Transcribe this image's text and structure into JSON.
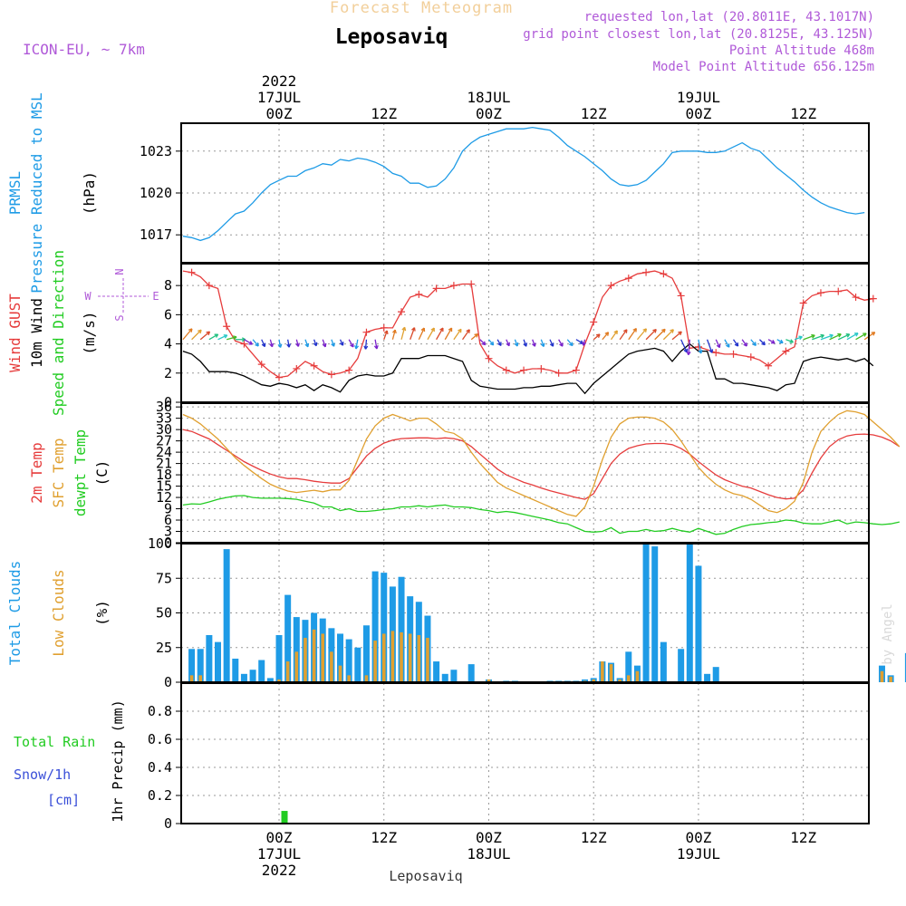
{
  "header": {
    "title": "Leposaviq",
    "subtitle": "Forecast Meteogram",
    "model": "ICON-EU, ~ 7km",
    "requested": "requested lon,lat (20.8011E, 43.1017N)",
    "grid": "grid point closest lon,lat (20.8125E, 43.125N)",
    "point_alt": "Point Altitude 468m",
    "model_alt": "Model Point Altitude 656.125m",
    "footer": "Leposaviq",
    "credit": "by Angel"
  },
  "colors": {
    "pressure": "#1e9be6",
    "gust": "#e63c3c",
    "wind": "#000000",
    "sfc": "#e0a030",
    "dewpt": "#22cc22",
    "total_clouds": "#1e9be6",
    "low_clouds": "#e0a030",
    "rain": "#22cc22",
    "snow": "#3a4fd8",
    "purple": "#b05ad8"
  },
  "time_axis": {
    "top_labels": [
      {
        "h": 0,
        "lines": [
          "2022",
          "17JUL",
          "00Z"
        ]
      },
      {
        "h": 12,
        "lines": [
          "12Z"
        ]
      },
      {
        "h": 24,
        "lines": [
          "18JUL",
          "00Z"
        ]
      },
      {
        "h": 36,
        "lines": [
          "12Z"
        ]
      },
      {
        "h": 48,
        "lines": [
          "19JUL",
          "00Z"
        ]
      },
      {
        "h": 60,
        "lines": [
          "12Z"
        ]
      }
    ],
    "bottom_labels": [
      {
        "h": 0,
        "lines": [
          "00Z",
          "17JUL",
          "2022"
        ]
      },
      {
        "h": 12,
        "lines": [
          "12Z"
        ]
      },
      {
        "h": 24,
        "lines": [
          "00Z",
          "18JUL"
        ]
      },
      {
        "h": 36,
        "lines": [
          "12Z"
        ]
      },
      {
        "h": 48,
        "lines": [
          "00Z",
          "19JUL"
        ]
      },
      {
        "h": 60,
        "lines": [
          "12Z"
        ]
      }
    ]
  },
  "panel_labels": {
    "pressure": [
      {
        "text": "PRMSL",
        "color": "#1e9be6"
      },
      {
        "text": "Pressure Reduced to MSL",
        "color": "#1e9be6"
      },
      {
        "text": "(hPa)",
        "color": "#000000"
      }
    ],
    "wind": [
      {
        "text": "Wind GUST",
        "color": "#e63c3c"
      },
      {
        "text": "10m Wind",
        "color": "#000000"
      },
      {
        "text": "Speed and Direction",
        "color": "#22cc22"
      },
      {
        "text": "(m/s)",
        "color": "#000000"
      }
    ],
    "compass": {
      "n": "N",
      "s": "S",
      "w": "W",
      "e": "E"
    },
    "temp": [
      {
        "text": "2m Temp",
        "color": "#e63c3c"
      },
      {
        "text": "SFC Temp",
        "color": "#e0a030"
      },
      {
        "text": "dewpt Temp",
        "color": "#22cc22"
      },
      {
        "text": "(C)",
        "color": "#000000"
      }
    ],
    "clouds": [
      {
        "text": "Total Clouds",
        "color": "#1e9be6"
      },
      {
        "text": "Low Clouds",
        "color": "#e0a030"
      },
      {
        "text": "(%)",
        "color": "#000000"
      }
    ],
    "precip_axis": "1hr Precip (mm)",
    "legend_rain": "Total  Rain",
    "legend_snow": "Snow/1h",
    "legend_cm": "[cm]"
  },
  "chart_data": [
    {
      "type": "line",
      "name": "pressure",
      "x_start": -11,
      "x_step": 1,
      "ylim": [
        1015,
        1025
      ],
      "yticks": [
        1017,
        1020,
        1023
      ],
      "series": [
        {
          "name": "PRMSL",
          "values": [
            1016.9,
            1016.8,
            1016.6,
            1016.8,
            1017.3,
            1017.9,
            1018.5,
            1018.7,
            1019.3,
            1020.0,
            1020.6,
            1020.9,
            1021.2,
            1021.2,
            1021.6,
            1021.8,
            1022.1,
            1022.0,
            1022.4,
            1022.3,
            1022.5,
            1022.4,
            1022.2,
            1021.9,
            1021.4,
            1021.2,
            1020.7,
            1020.7,
            1020.4,
            1020.5,
            1021.0,
            1021.8,
            1023.0,
            1023.6,
            1024.0,
            1024.2,
            1024.4,
            1024.6,
            1024.6,
            1024.6,
            1024.7,
            1024.6,
            1024.5,
            1024.0,
            1023.4,
            1023.0,
            1022.6,
            1022.1,
            1021.6,
            1021.0,
            1020.6,
            1020.5,
            1020.6,
            1020.9,
            1021.5,
            1022.1,
            1022.9,
            1023.0,
            1023.0,
            1023.0,
            1022.9,
            1022.9,
            1023.0,
            1023.3,
            1023.6,
            1023.2,
            1023.0,
            1022.4,
            1021.8,
            1021.3,
            1020.8,
            1020.2,
            1019.7,
            1019.3,
            1019.0,
            1018.8,
            1018.6,
            1018.5,
            1018.6
          ]
        }
      ]
    },
    {
      "type": "line",
      "name": "wind",
      "x_start": -11,
      "x_step": 1,
      "ylim": [
        0,
        9.5
      ],
      "yticks": [
        0,
        2,
        4,
        6,
        8
      ],
      "series": [
        {
          "name": "Wind GUST",
          "values": [
            9.0,
            8.9,
            8.6,
            8.0,
            7.8,
            5.2,
            4.2,
            4.0,
            3.3,
            2.6,
            2.1,
            1.7,
            1.8,
            2.3,
            2.8,
            2.5,
            2.1,
            1.9,
            2.0,
            2.2,
            3.0,
            4.8,
            5.0,
            5.1,
            5.1,
            6.2,
            7.2,
            7.4,
            7.2,
            7.8,
            7.8,
            8.0,
            8.1,
            8.1,
            4.0,
            3.0,
            2.5,
            2.2,
            2.0,
            2.2,
            2.3,
            2.3,
            2.2,
            2.0,
            2.0,
            2.2,
            4.0,
            5.5,
            7.2,
            8.0,
            8.3,
            8.5,
            8.8,
            8.9,
            9.0,
            8.8,
            8.5,
            7.3,
            3.7,
            3.8,
            3.6,
            3.4,
            3.3,
            3.3,
            3.2,
            3.1,
            2.9,
            2.5,
            3.0,
            3.5,
            3.8,
            6.8,
            7.3,
            7.5,
            7.6,
            7.6,
            7.7,
            7.2,
            7.0,
            7.1
          ]
        },
        {
          "name": "10m Wind",
          "values": [
            3.5,
            3.3,
            2.8,
            2.1,
            2.1,
            2.1,
            2.0,
            1.8,
            1.5,
            1.2,
            1.1,
            1.3,
            1.2,
            1.0,
            1.2,
            0.8,
            1.2,
            1.0,
            0.7,
            1.5,
            1.8,
            1.9,
            1.8,
            1.8,
            2.0,
            3.0,
            3.0,
            3.0,
            3.2,
            3.2,
            3.2,
            3.0,
            2.8,
            1.5,
            1.1,
            1.0,
            0.9,
            0.9,
            0.9,
            1.0,
            1.0,
            1.1,
            1.1,
            1.2,
            1.3,
            1.3,
            0.6,
            1.3,
            1.8,
            2.3,
            2.8,
            3.3,
            3.5,
            3.6,
            3.7,
            3.5,
            2.8,
            3.5,
            4.0,
            3.5,
            3.5,
            1.6,
            1.6,
            1.3,
            1.3,
            1.2,
            1.1,
            1.0,
            0.8,
            1.2,
            1.3,
            2.8,
            3.0,
            3.1,
            3.0,
            2.9,
            3.0,
            2.8,
            3.0,
            2.5
          ]
        }
      ],
      "direction_deg": [
        220,
        225,
        230,
        240,
        245,
        255,
        270,
        300,
        320,
        335,
        345,
        350,
        350,
        345,
        340,
        340,
        340,
        340,
        335,
        330,
        10,
        5,
        350,
        200,
        195,
        195,
        200,
        205,
        210,
        210,
        210,
        215,
        215,
        230,
        315,
        320,
        330,
        335,
        340,
        340,
        340,
        340,
        335,
        330,
        320,
        300,
        15,
        230,
        220,
        215,
        215,
        215,
        220,
        225,
        225,
        225,
        230,
        335,
        5,
        350,
        340,
        335,
        330,
        325,
        325,
        320,
        315,
        300,
        300,
        290,
        250,
        250,
        250,
        250,
        245,
        245,
        240,
        240,
        235,
        235
      ]
    },
    {
      "type": "line",
      "name": "temperature",
      "x_start": -11,
      "x_step": 1,
      "ylim": [
        0,
        37
      ],
      "yticks": [
        0,
        3,
        6,
        9,
        12,
        15,
        18,
        21,
        24,
        27,
        30,
        33,
        36
      ],
      "series": [
        {
          "name": "2m Temp",
          "values": [
            30.0,
            29.5,
            28.5,
            27.5,
            26.0,
            24.5,
            23.0,
            21.5,
            20.3,
            19.2,
            18.2,
            17.5,
            17.0,
            17.0,
            16.7,
            16.3,
            16.0,
            15.8,
            15.8,
            17.0,
            20.0,
            23.0,
            25.0,
            26.4,
            27.2,
            27.6,
            27.7,
            27.8,
            27.8,
            27.6,
            27.8,
            27.6,
            27.0,
            25.5,
            23.5,
            21.5,
            19.5,
            18.0,
            17.0,
            16.0,
            15.3,
            14.5,
            13.8,
            13.2,
            12.6,
            12.0,
            11.5,
            13.0,
            17.0,
            21.0,
            23.5,
            25.0,
            25.7,
            26.2,
            26.3,
            26.3,
            26.0,
            25.0,
            23.5,
            21.5,
            19.7,
            18.0,
            16.7,
            15.8,
            15.0,
            14.5,
            13.6,
            12.7,
            12.0,
            11.6,
            11.8,
            14.0,
            18.5,
            22.5,
            25.5,
            27.3,
            28.3,
            28.7,
            28.8,
            28.6,
            28.0,
            27.0,
            25.5
          ]
        },
        {
          "name": "SFC Temp",
          "values": [
            34.0,
            33.0,
            31.5,
            29.5,
            27.5,
            25.0,
            22.5,
            20.5,
            18.7,
            17.0,
            15.5,
            14.5,
            13.7,
            13.3,
            13.6,
            13.9,
            13.5,
            14.0,
            14.0,
            16.5,
            22.0,
            27.5,
            31.0,
            33.0,
            34.0,
            33.2,
            32.3,
            33.0,
            33.0,
            31.5,
            29.5,
            29.0,
            27.5,
            24.0,
            21.0,
            18.5,
            16.0,
            14.5,
            13.5,
            12.5,
            11.5,
            10.5,
            9.5,
            8.5,
            7.5,
            7.0,
            9.5,
            15.0,
            22.0,
            28.0,
            31.5,
            33.0,
            33.3,
            33.3,
            33.0,
            32.0,
            30.0,
            27.0,
            23.5,
            20.0,
            17.5,
            15.5,
            14.0,
            13.0,
            12.5,
            11.5,
            10.0,
            8.5,
            8.0,
            9.0,
            11.0,
            16.0,
            24.0,
            29.5,
            32.0,
            34.0,
            35.0,
            34.7,
            34.0,
            32.0,
            30.0,
            28.0,
            25.5
          ]
        },
        {
          "name": "dewpt Temp",
          "values": [
            10.0,
            10.3,
            10.2,
            10.8,
            11.5,
            12.0,
            12.4,
            12.5,
            12.0,
            11.8,
            11.8,
            11.8,
            11.7,
            11.5,
            11.0,
            10.5,
            9.5,
            9.5,
            8.5,
            9.0,
            8.3,
            8.3,
            8.5,
            8.8,
            9.0,
            9.5,
            9.5,
            9.8,
            9.5,
            9.8,
            10.0,
            9.5,
            9.5,
            9.3,
            8.8,
            8.5,
            8.0,
            8.3,
            8.0,
            7.5,
            7.0,
            6.5,
            6.0,
            5.3,
            5.0,
            4.0,
            3.0,
            2.8,
            3.0,
            4.0,
            2.5,
            3.0,
            3.0,
            3.5,
            3.0,
            3.2,
            3.8,
            3.2,
            2.8,
            3.8,
            3.0,
            2.2,
            2.5,
            3.5,
            4.3,
            4.8,
            5.0,
            5.3,
            5.5,
            6.0,
            5.8,
            5.2,
            5.0,
            5.0,
            5.5,
            6.0,
            5.0,
            5.5,
            5.3,
            5.0,
            4.8,
            5.0,
            5.5
          ]
        }
      ]
    },
    {
      "type": "bar",
      "name": "clouds",
      "x_start": -10,
      "x_step": 1,
      "ylim": [
        0,
        100
      ],
      "yticks": [
        0,
        25,
        50,
        75,
        100
      ],
      "series": [
        {
          "name": "Total Clouds",
          "values": [
            24,
            24,
            34,
            29,
            96,
            17,
            6,
            9,
            16,
            3,
            34,
            63,
            47,
            45,
            50,
            46,
            39,
            35,
            31,
            25,
            41,
            80,
            79,
            69,
            76,
            62,
            58,
            48,
            15,
            6,
            9,
            0,
            13,
            0,
            2,
            0,
            1,
            1,
            0,
            0,
            0,
            1,
            1,
            1,
            1,
            2,
            3,
            15,
            14,
            3,
            22,
            12,
            100,
            98,
            29,
            0,
            24,
            100,
            84,
            6,
            11,
            0,
            0,
            0,
            0,
            0,
            0,
            0,
            0,
            0,
            0,
            0,
            0,
            0,
            0,
            0,
            0,
            0,
            0,
            12,
            5,
            0,
            21
          ]
        },
        {
          "name": "Low Clouds",
          "values": [
            5,
            5,
            0,
            0,
            0,
            0,
            0,
            0,
            0,
            0,
            2,
            15,
            22,
            32,
            38,
            35,
            22,
            12,
            5,
            0,
            5,
            30,
            35,
            37,
            36,
            35,
            34,
            32,
            0,
            0,
            0,
            0,
            0,
            0,
            2,
            0,
            0,
            0,
            0,
            0,
            0,
            0,
            0,
            0,
            0,
            1,
            2,
            15,
            13,
            2,
            5,
            8,
            0,
            0,
            0,
            0,
            0,
            0,
            0,
            0,
            0,
            0,
            0,
            0,
            0,
            0,
            0,
            0,
            0,
            0,
            0,
            0,
            0,
            0,
            0,
            0,
            0,
            0,
            0,
            8,
            4,
            0,
            10
          ]
        }
      ]
    },
    {
      "type": "bar",
      "name": "precipitation",
      "x_start": 0,
      "x_step": 1,
      "ylim": [
        0,
        1.0
      ],
      "yticks": [
        0,
        0.2,
        0.4,
        0.6,
        0.8
      ],
      "series": [
        {
          "name": "Total  Rain",
          "values": [
            0.09,
            0.0
          ]
        }
      ]
    }
  ]
}
